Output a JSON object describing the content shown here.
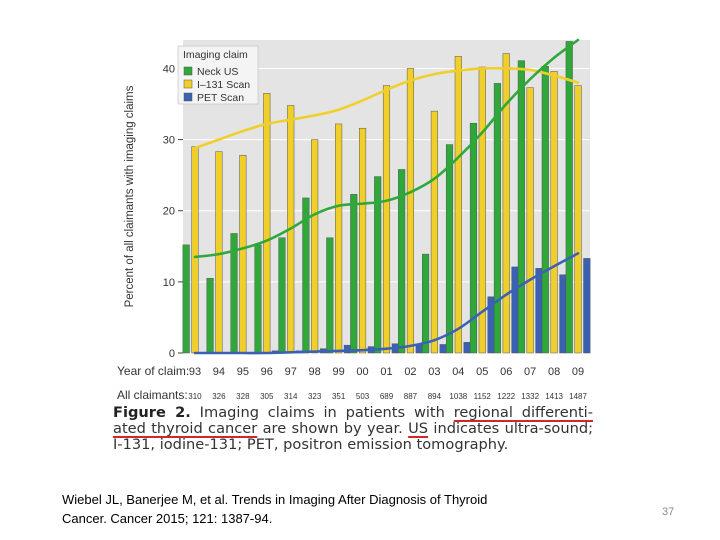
{
  "chart_data": {
    "type": "bar",
    "ylabel": "Percent of all claimants with imaging claims",
    "ylim": [
      0,
      44
    ],
    "yticks": [
      0,
      10,
      20,
      30,
      40
    ],
    "year_label": "Year of claim:",
    "claimants_label": "All claimants:",
    "categories": [
      "93",
      "94",
      "95",
      "96",
      "97",
      "98",
      "99",
      "00",
      "01",
      "02",
      "03",
      "04",
      "05",
      "06",
      "07",
      "08",
      "09"
    ],
    "claimants": [
      "310",
      "326",
      "328",
      "305",
      "314",
      "323",
      "351",
      "503",
      "689",
      "887",
      "894",
      "1038",
      "1152",
      "1222",
      "1332",
      "1413",
      "1487"
    ],
    "legend": {
      "title": "Imaging claim",
      "position": "top-left"
    },
    "series": [
      {
        "name": "Neck US",
        "color": "#2fa83a",
        "values": [
          15.2,
          10.5,
          16.8,
          15.2,
          16.2,
          21.8,
          16.2,
          22.3,
          24.8,
          25.8,
          13.9,
          29.3,
          32.3,
          37.9,
          41.1,
          40.3,
          43.8
        ]
      },
      {
        "name": "I–131 Scan",
        "color": "#f1cf2a",
        "values": [
          29.0,
          28.3,
          27.8,
          36.5,
          34.8,
          30.0,
          32.2,
          31.6,
          37.6,
          40.0,
          34.0,
          41.7,
          40.2,
          42.1,
          37.3,
          39.6,
          37.6
        ]
      },
      {
        "name": "PET Scan",
        "color": "#3b62b2",
        "values": [
          0,
          0,
          0,
          0.3,
          0.3,
          0.6,
          1.1,
          0.9,
          1.3,
          1.2,
          1.2,
          1.5,
          7.9,
          12.1,
          11.9,
          11.0,
          13.3
        ]
      }
    ],
    "trend_lines": [
      {
        "series": "I–131 Scan",
        "color": "#f1cf2a",
        "values": [
          28.8,
          30.0,
          31.2,
          32.2,
          32.8,
          33.4,
          34.2,
          35.5,
          37.0,
          38.3,
          39.2,
          39.7,
          40.0,
          40.0,
          39.8,
          39.0,
          38.0
        ]
      },
      {
        "series": "Neck US",
        "color": "#2fa83a",
        "values": [
          13.5,
          13.9,
          14.7,
          15.8,
          17.5,
          19.5,
          20.7,
          21.0,
          21.4,
          22.6,
          24.5,
          27.5,
          31.0,
          35.0,
          38.5,
          41.5,
          44.0
        ]
      },
      {
        "series": "PET Scan",
        "color": "#3b62b2",
        "values": [
          0,
          0,
          0,
          0,
          0.1,
          0.2,
          0.3,
          0.4,
          0.6,
          1.0,
          1.8,
          3.4,
          5.8,
          8.2,
          10.3,
          12.2,
          14.0
        ]
      }
    ]
  },
  "caption": {
    "figure_label": "Figure 2.",
    "part1": "Imaging claims in patients with",
    "underlined1": "regional differenti-",
    "underlined2": "ated thyroid cancer",
    "part2": "are shown by year.",
    "underlined3": "US",
    "part3": "indicates ultra-sound; I-131, iodine-131; PET, positron emission tomography."
  },
  "citation": {
    "line1": "Wiebel JL, Banerjee M, et al. Trends in Imaging After Diagnosis of Thyroid",
    "line2": "Cancer. Cancer 2015; 121: 1387-94."
  },
  "slide_number": "37"
}
